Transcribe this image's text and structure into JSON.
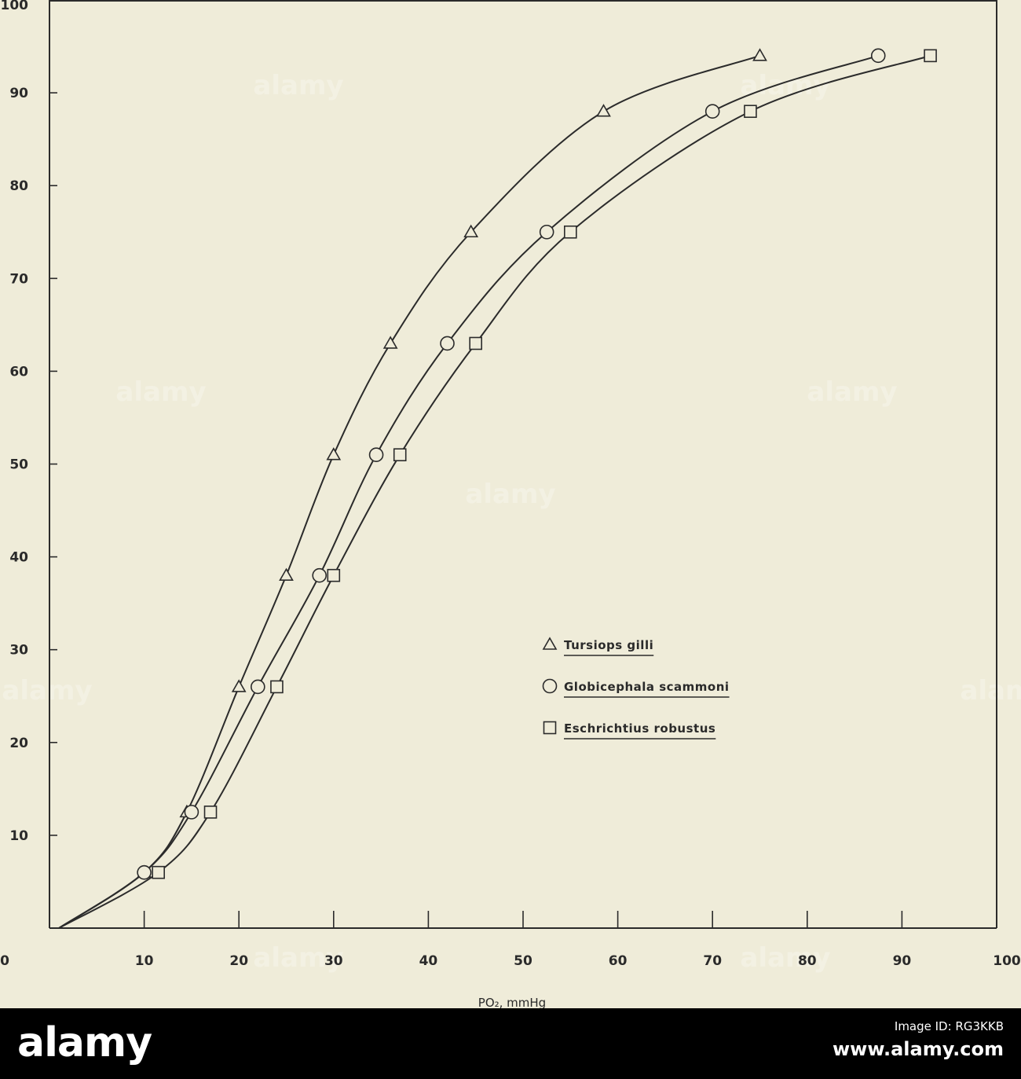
{
  "chart_data": {
    "type": "line",
    "title": "",
    "xlabel": "PO₂, mmHg",
    "ylabel": "",
    "xlim": [
      0,
      100
    ],
    "ylim": [
      0,
      100
    ],
    "xticks": [
      "0",
      "10",
      "20",
      "30",
      "40",
      "50",
      "60",
      "70",
      "80",
      "90",
      "100"
    ],
    "yticks": [
      "0",
      "10",
      "20",
      "30",
      "40",
      "50",
      "60",
      "70",
      "80",
      "90",
      "100"
    ],
    "grid": false,
    "legend_position": "bottom-right",
    "series": [
      {
        "name": "Tursiops gilli",
        "marker": "triangle",
        "points": [
          [
            10,
            6
          ],
          [
            14.5,
            12.5
          ],
          [
            20,
            26
          ],
          [
            25,
            38
          ],
          [
            30,
            51
          ],
          [
            36,
            63
          ],
          [
            44.5,
            75
          ],
          [
            58.5,
            88
          ],
          [
            75,
            94
          ]
        ]
      },
      {
        "name": "Globicephala scammoni",
        "marker": "circle",
        "points": [
          [
            10,
            6
          ],
          [
            15,
            12.5
          ],
          [
            22,
            26
          ],
          [
            28.5,
            38
          ],
          [
            34.5,
            51
          ],
          [
            42,
            63
          ],
          [
            52.5,
            75
          ],
          [
            70,
            88
          ],
          [
            87.5,
            94
          ]
        ]
      },
      {
        "name": "Eschrichtius robustus",
        "marker": "square",
        "points": [
          [
            11.5,
            6
          ],
          [
            17,
            12.5
          ],
          [
            24,
            26
          ],
          [
            30,
            38
          ],
          [
            37,
            51
          ],
          [
            45,
            63
          ],
          [
            55,
            75
          ],
          [
            74,
            88
          ],
          [
            93,
            94
          ]
        ]
      }
    ]
  },
  "watermark": "alamy",
  "footer": {
    "logo": "alamy",
    "image_id": "Image ID: RG3KKB",
    "site": "www.alamy.com"
  }
}
